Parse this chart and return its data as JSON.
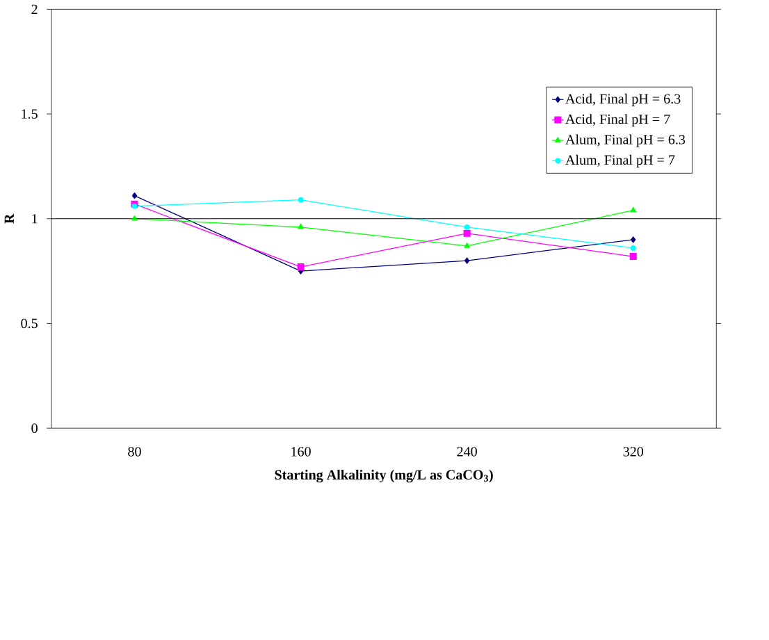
{
  "chart_data": {
    "type": "line",
    "xlabel": "**Starting Alkalinity (mg/L as CaCO$_{3}$)**",
    "ylabel": "**R**",
    "categories": [
      "80",
      "160",
      "240",
      "320"
    ],
    "series": [
      {
        "name": "Acid, Final pH = 6.3",
        "color": "#000080",
        "marker": "diamond",
        "values": [
          1.11,
          0.75,
          0.8,
          0.9
        ]
      },
      {
        "name": "Acid, Final pH = 7",
        "color": "#ff00ff",
        "marker": "square",
        "values": [
          1.07,
          0.77,
          0.93,
          0.82
        ]
      },
      {
        "name": "Alum, Final pH = 6.3",
        "color": "#00ff00",
        "marker": "triangle",
        "values": [
          1.0,
          0.96,
          0.87,
          1.04
        ]
      },
      {
        "name": "Alum, Final pH = 7",
        "color": "#00ffff",
        "marker": "circle",
        "values": [
          1.06,
          1.09,
          0.96,
          0.86
        ]
      }
    ],
    "ylim": [
      0,
      2
    ],
    "yticks": [
      0,
      0.5,
      1,
      1.5,
      2
    ],
    "ref_lines": [
      {
        "axis": "y",
        "value": 1,
        "color": "#000000"
      }
    ],
    "legend": "top right"
  }
}
